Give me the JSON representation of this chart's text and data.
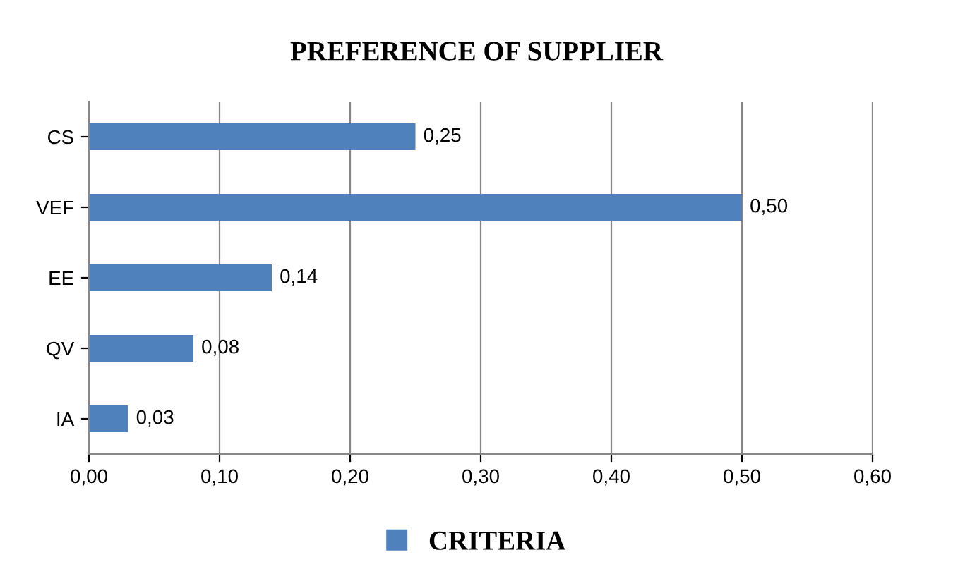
{
  "chart_data": {
    "type": "bar",
    "orientation": "horizontal",
    "title": "PREFERENCE OF SUPPLIER",
    "categories": [
      "CS",
      "VEF",
      "EE",
      "QV",
      "IA"
    ],
    "series": [
      {
        "name": "CRITERIA",
        "color": "#4f81bd",
        "values": [
          0.25,
          0.5,
          0.14,
          0.08,
          0.03
        ],
        "value_labels": [
          "0,25",
          "0,50",
          "0,14",
          "0,08",
          "0,03"
        ]
      }
    ],
    "xlim": [
      0,
      0.6
    ],
    "xticks": [
      {
        "value": 0,
        "label": "0,00"
      },
      {
        "value": 0.1,
        "label": "0,10"
      },
      {
        "value": 0.2,
        "label": "0,20"
      },
      {
        "value": 0.3,
        "label": "0,30"
      },
      {
        "value": 0.4,
        "label": "0,40"
      },
      {
        "value": 0.5,
        "label": "0,50"
      },
      {
        "value": 0.6,
        "label": "0,60"
      }
    ],
    "grid": "x",
    "legend": "bottom"
  }
}
